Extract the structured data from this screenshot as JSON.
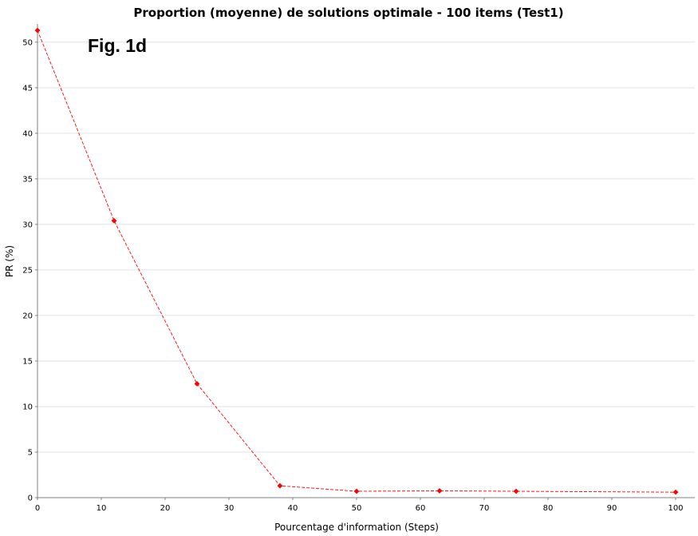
{
  "chart_data": {
    "type": "line",
    "title": "Proportion (moyenne) de solutions optimale - 100 items (Test1)",
    "annotation": "Fig. 1d",
    "xlabel": "Pourcentage d'information (Steps)",
    "ylabel": "PR (%)",
    "xlim": [
      0,
      103
    ],
    "ylim": [
      0,
      52
    ],
    "xticks": [
      0,
      10,
      20,
      30,
      40,
      50,
      60,
      70,
      80,
      90,
      100
    ],
    "yticks": [
      0,
      5,
      10,
      15,
      20,
      25,
      30,
      35,
      40,
      45,
      50
    ],
    "grid": true,
    "legend": "none",
    "colors": {
      "series": "#ff0000",
      "grid": "#e2e2e2",
      "axis": "#808080"
    },
    "series": [
      {
        "marker": "diamond",
        "line_style": "dashed",
        "x": [
          0,
          12,
          25,
          38,
          50,
          63,
          75,
          100
        ],
        "y": [
          51.3,
          30.4,
          12.5,
          1.3,
          0.7,
          0.75,
          0.7,
          0.6
        ]
      }
    ]
  }
}
